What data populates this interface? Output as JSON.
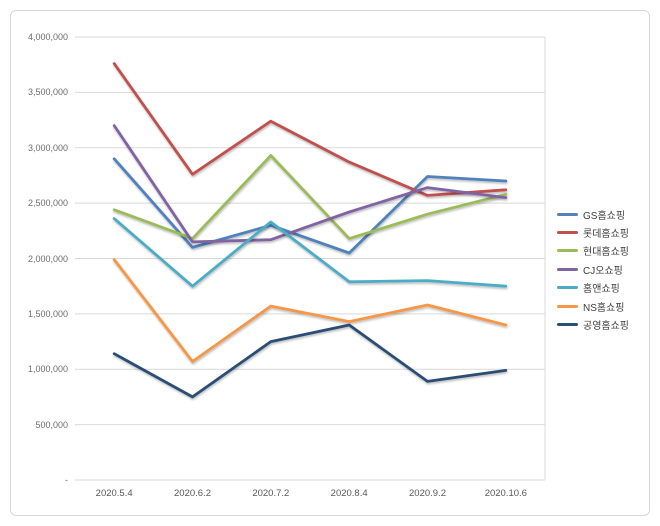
{
  "chart_data": {
    "type": "line",
    "title": "",
    "xlabel": "",
    "ylabel": "",
    "x": [
      "2020.5.4",
      "2020.6.2",
      "2020.7.2",
      "2020.8.4",
      "2020.9.2",
      "2020.10.6"
    ],
    "series": [
      {
        "name": "GS홈쇼핑",
        "color": "#4F81BD",
        "values": [
          2900000,
          2100000,
          2300000,
          2050000,
          2740000,
          2700000
        ]
      },
      {
        "name": "롯데홈쇼핑",
        "color": "#C0504D",
        "values": [
          3760000,
          2760000,
          3240000,
          2870000,
          2570000,
          2620000
        ]
      },
      {
        "name": "현대홈쇼핑",
        "color": "#9BBB59",
        "values": [
          2440000,
          2180000,
          2930000,
          2180000,
          2400000,
          2580000
        ]
      },
      {
        "name": "CJ오쇼핑",
        "color": "#8064A2",
        "values": [
          3200000,
          2150000,
          2170000,
          2420000,
          2640000,
          2550000
        ]
      },
      {
        "name": "홈앤쇼핑",
        "color": "#4BACC6",
        "values": [
          2360000,
          1750000,
          2330000,
          1790000,
          1800000,
          1750000
        ]
      },
      {
        "name": "NS홈쇼핑",
        "color": "#F79646",
        "values": [
          1990000,
          1070000,
          1570000,
          1430000,
          1580000,
          1400000
        ]
      },
      {
        "name": "공영홈쇼핑",
        "color": "#2C4D75",
        "values": [
          1140000,
          750000,
          1250000,
          1400000,
          890000,
          990000
        ]
      }
    ],
    "ylim": [
      0,
      4000000
    ],
    "ytick_step": 500000,
    "ytick_labels": [
      "-",
      "500,000",
      "1,000,000",
      "1,500,000",
      "2,000,000",
      "2,500,000",
      "3,000,000",
      "3,500,000",
      "4,000,000"
    ],
    "grid": true,
    "legend_position": "right"
  },
  "colors": {
    "background": "#FFFFFF",
    "frame_border": "#D7D7D7",
    "gridline": "#D9D9D9",
    "axis_tick_text": "#6E6E6E",
    "x_tick_text": "#595959",
    "legend_text": "#404040"
  }
}
